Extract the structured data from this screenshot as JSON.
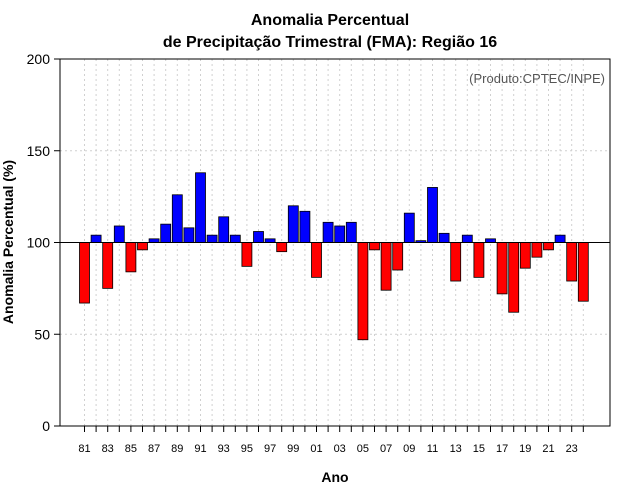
{
  "chart_data": {
    "type": "bar",
    "title": [
      "Anomalia Percentual",
      "de Precipitação Trimestral (FMA): Região 16"
    ],
    "xlabel": "Ano",
    "ylabel": "Anomalia Percentual (%)",
    "credit": "(Produto:CPTEC/INPE)",
    "ylim": [
      0,
      200
    ],
    "yticks": [
      0,
      50,
      100,
      150,
      200
    ],
    "baseline": 100,
    "grid": true,
    "colors": {
      "above": "#0000ff",
      "below": "#ff0000",
      "edge": "#000000",
      "grid": "#d0d0d0"
    },
    "categories": [
      "81",
      "82",
      "83",
      "84",
      "85",
      "86",
      "87",
      "88",
      "89",
      "90",
      "91",
      "92",
      "93",
      "94",
      "95",
      "96",
      "97",
      "98",
      "99",
      "00",
      "01",
      "02",
      "03",
      "04",
      "05",
      "06",
      "07",
      "08",
      "09",
      "10",
      "11",
      "12",
      "13",
      "14",
      "15",
      "16",
      "17",
      "18",
      "19",
      "20",
      "21",
      "22",
      "23",
      "24"
    ],
    "tick_labels": [
      "81",
      "83",
      "85",
      "87",
      "89",
      "91",
      "93",
      "95",
      "97",
      "99",
      "01",
      "03",
      "05",
      "07",
      "09",
      "11",
      "13",
      "15",
      "17",
      "19",
      "21",
      "23"
    ],
    "values": [
      67,
      104,
      75,
      109,
      84,
      96,
      102,
      110,
      126,
      108,
      138,
      104,
      114,
      104,
      87,
      106,
      102,
      95,
      120,
      117,
      81,
      111,
      109,
      111,
      47,
      96,
      74,
      85,
      116,
      101,
      130,
      105,
      79,
      104,
      81,
      102,
      72,
      62,
      86,
      92,
      96,
      104,
      79,
      68
    ]
  }
}
